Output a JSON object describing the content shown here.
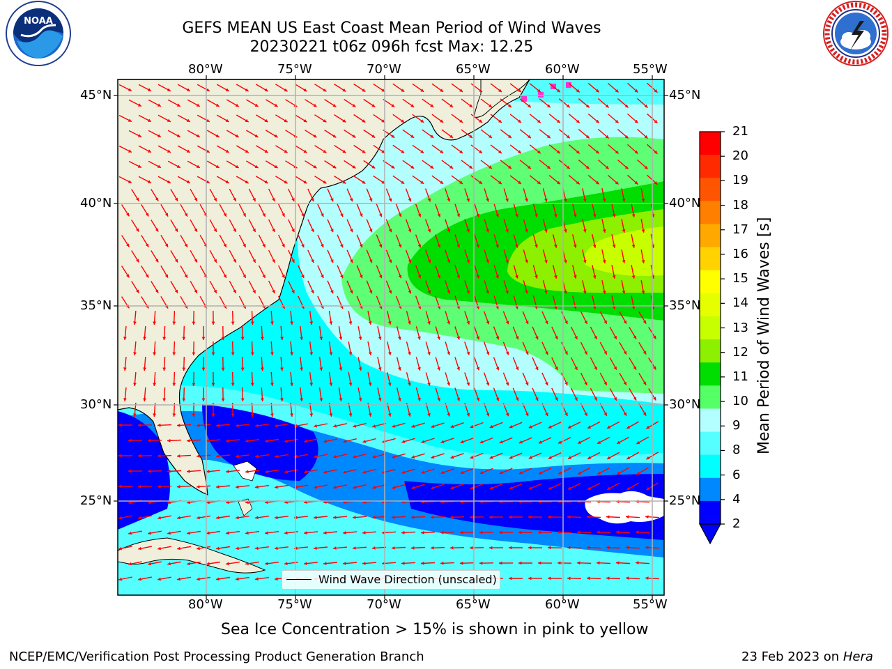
{
  "title_line1": "GEFS MEAN US East Coast Mean Period of Wind Waves",
  "title_line2": "20230221 t06z 096h fcst   Max: 12.25",
  "lon_labels": [
    "80°W",
    "75°W",
    "70°W",
    "65°W",
    "60°W",
    "55°W"
  ],
  "lat_labels": [
    "45°N",
    "40°N",
    "35°N",
    "30°N",
    "25°N"
  ],
  "legend_label": "Wind Wave Direction (unscaled)",
  "colorbar": {
    "label": "Mean Period of Wind Waves [s]",
    "ticks": [
      "21",
      "20",
      "19",
      "18",
      "17",
      "16",
      "15",
      "14",
      "13",
      "12",
      "11",
      "10",
      "9",
      "8",
      "6",
      "4",
      "2"
    ],
    "colors": [
      "#ff0000",
      "#ff2a00",
      "#ff5500",
      "#ff7f00",
      "#ffa800",
      "#ffd200",
      "#ffff00",
      "#e6ff00",
      "#c8ff00",
      "#8cf000",
      "#00dd00",
      "#55ff66",
      "#b3ffff",
      "#55ffff",
      "#00ffff",
      "#0088ff",
      "#0000ff"
    ]
  },
  "icon_left": "noaa-logo",
  "icon_right": "nws-logo",
  "sea_ice_note": "Sea Ice Concentration > 15% is shown in pink to yellow",
  "footer_left": "NCEP/EMC/Verification Post Processing Product Generation Branch",
  "footer_right_date": "23 Feb 2023 on ",
  "footer_right_machine": "Hera",
  "colors": {
    "land": "#efefdc",
    "grid": "#b0b0b0",
    "arrow": "#ff0000"
  }
}
